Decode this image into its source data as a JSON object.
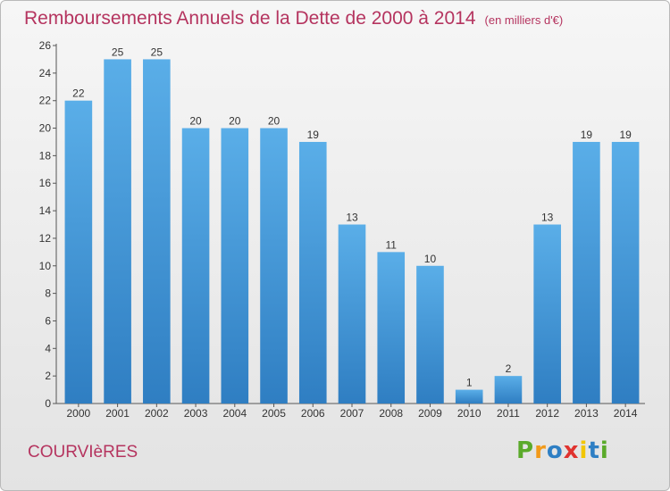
{
  "title": "Remboursements Annuels de la Dette de 2000 à 2014",
  "subtitle": "(en milliers d'€)",
  "location": "COURVIèRES",
  "logo": {
    "letters": [
      "P",
      "r",
      "o",
      "x",
      "i",
      "t",
      "i"
    ],
    "colors": [
      "#5aaa2a",
      "#f29a1a",
      "#2e7fc4",
      "#e0332f",
      "#f2c600",
      "#2e7fc4",
      "#5aaa2a"
    ]
  },
  "colors": {
    "bar_light": "#5aaee8",
    "bar_dark": "#2f7ec2",
    "text": "#b5345f"
  },
  "chart_data": {
    "type": "bar",
    "categories": [
      "2000",
      "2001",
      "2002",
      "2003",
      "2004",
      "2005",
      "2006",
      "2007",
      "2008",
      "2009",
      "2010",
      "2011",
      "2012",
      "2013",
      "2014"
    ],
    "values": [
      22,
      25,
      25,
      20,
      20,
      20,
      19,
      13,
      11,
      10,
      1,
      2,
      13,
      19,
      19
    ],
    "data_labels": [
      "22",
      "25",
      "25",
      "20",
      "20",
      "20",
      "19",
      "13",
      "11",
      "10",
      "1",
      "2",
      "13",
      "19",
      "19"
    ],
    "y_ticks": [
      "0",
      "2",
      "4",
      "6",
      "8",
      "10",
      "12",
      "14",
      "16",
      "18",
      "20",
      "22",
      "24",
      "26"
    ],
    "title": "Remboursements Annuels de la Dette de 2000 à 2014",
    "xlabel": "",
    "ylabel": "",
    "ylim": [
      0,
      26
    ],
    "grid": false,
    "legend": "none"
  }
}
